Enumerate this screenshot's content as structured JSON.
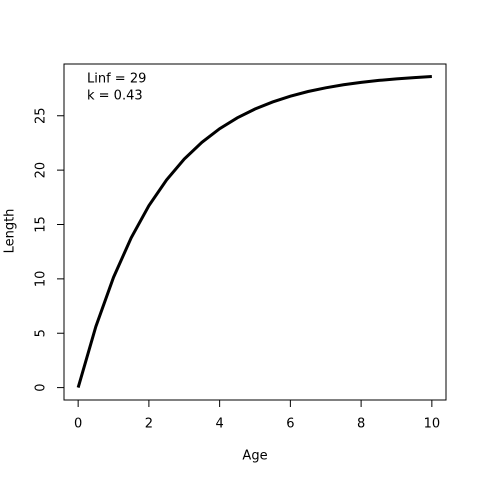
{
  "chart_data": {
    "type": "line",
    "x_label": "Age",
    "y_label": "Length",
    "annotations": [
      "Linf = 29",
      "k = 0.43"
    ],
    "x": [
      0,
      0.5,
      1,
      1.5,
      2,
      2.5,
      3,
      3.5,
      4,
      4.5,
      5,
      5.5,
      6,
      6.5,
      7,
      7.5,
      8,
      8.5,
      9,
      9.5,
      10
    ],
    "series": [
      {
        "color": "#000000",
        "values": [
          0,
          5.61,
          10.14,
          13.78,
          16.73,
          19.1,
          21.02,
          22.56,
          23.81,
          24.81,
          25.62,
          26.27,
          26.8,
          27.23,
          27.57,
          27.85,
          28.07,
          28.25,
          28.39,
          28.51,
          28.61
        ]
      }
    ],
    "xlim": [
      -0.4,
      10.4
    ],
    "ylim": [
      -1.14,
      29.76
    ],
    "xticks": [
      0,
      2,
      4,
      6,
      8,
      10
    ],
    "yticks": [
      0,
      5,
      10,
      15,
      20,
      25
    ]
  }
}
